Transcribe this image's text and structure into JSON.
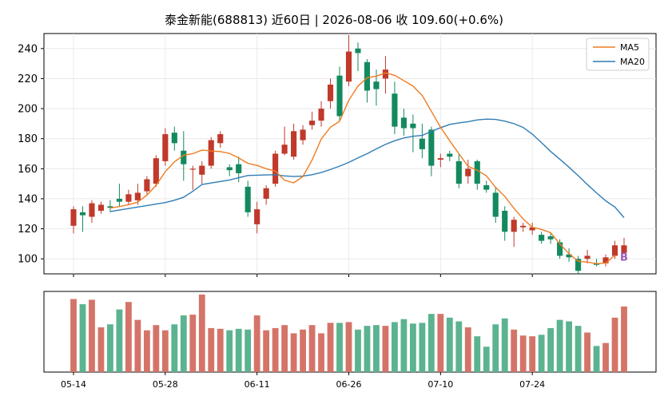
{
  "title": "泰金新能(688813) 近60日  |  2026-08-06 收 109.60(+0.6%)",
  "colors": {
    "up": "#c0392b",
    "down": "#138a5e",
    "up_vol": "#d47468",
    "down_vol": "#5bb38f",
    "ma5": "#ee7d22",
    "ma20": "#2f7db5",
    "marker": "#9b59b6"
  },
  "chart_data": [
    {
      "type": "candlestick",
      "ylim": [
        90,
        250
      ],
      "yticks": [
        "100",
        "120",
        "140",
        "160",
        "180",
        "200",
        "220",
        "240"
      ],
      "grid": true,
      "legend_position": "top-right",
      "xtick_positions": [
        0,
        10,
        20,
        30,
        40,
        50
      ],
      "xticks": [
        "05-14",
        "05-28",
        "06-11",
        "06-26",
        "07-10",
        "07-24"
      ],
      "ohlc": [
        [
          122,
          133,
          117,
          135
        ],
        [
          131,
          129,
          118,
          135
        ],
        [
          128,
          137,
          124,
          139
        ],
        [
          132,
          136,
          130,
          138
        ],
        [
          135,
          134,
          131,
          139
        ],
        [
          140,
          138,
          135,
          150
        ],
        [
          138,
          143,
          136,
          146
        ],
        [
          139,
          144,
          136,
          150
        ],
        [
          145,
          153,
          143,
          155
        ],
        [
          150,
          167,
          148,
          169
        ],
        [
          165,
          183,
          162,
          187
        ],
        [
          184,
          177,
          172,
          188
        ],
        [
          172,
          163,
          152,
          185
        ],
        [
          160,
          160,
          146,
          162
        ],
        [
          156,
          162,
          150,
          165
        ],
        [
          162,
          179,
          160,
          181
        ],
        [
          177,
          183,
          174,
          185
        ],
        [
          161,
          159,
          155,
          163
        ],
        [
          163,
          157,
          151,
          168
        ],
        [
          148,
          131,
          128,
          152
        ],
        [
          123,
          133,
          117,
          138
        ],
        [
          140,
          147,
          136,
          149
        ],
        [
          150,
          170,
          148,
          172
        ],
        [
          170,
          176,
          169,
          188
        ],
        [
          168,
          185,
          166,
          190
        ],
        [
          179,
          186,
          176,
          189
        ],
        [
          189,
          192,
          186,
          198
        ],
        [
          192,
          200,
          188,
          205
        ],
        [
          205,
          216,
          200,
          220
        ],
        [
          222,
          195,
          192,
          228
        ],
        [
          218,
          238,
          215,
          249
        ],
        [
          240,
          237,
          225,
          244
        ],
        [
          231,
          212,
          204,
          233
        ],
        [
          218,
          213,
          202,
          226
        ],
        [
          220,
          226,
          210,
          235
        ],
        [
          210,
          188,
          183,
          218
        ],
        [
          194,
          187,
          182,
          200
        ],
        [
          190,
          187,
          171,
          196
        ],
        [
          180,
          173,
          167,
          190
        ],
        [
          186,
          162,
          155,
          188
        ],
        [
          166,
          167,
          161,
          170
        ],
        [
          170,
          168,
          165,
          172
        ],
        [
          165,
          150,
          147,
          170
        ],
        [
          155,
          160,
          150,
          166
        ],
        [
          165,
          150,
          146,
          166
        ],
        [
          149,
          146,
          144,
          152
        ],
        [
          144,
          128,
          124,
          148
        ],
        [
          132,
          118,
          112,
          135
        ],
        [
          118,
          126,
          108,
          128
        ],
        [
          121,
          122,
          118,
          124
        ],
        [
          119,
          121,
          116,
          124
        ],
        [
          116,
          112,
          110,
          118
        ],
        [
          115,
          113,
          110,
          117
        ],
        [
          111,
          102,
          100,
          113
        ],
        [
          103,
          101,
          98,
          107
        ],
        [
          100,
          92,
          90,
          102
        ],
        [
          100,
          102,
          97,
          106
        ],
        [
          97,
          96,
          95,
          100
        ],
        [
          97,
          101,
          95,
          103
        ],
        [
          102,
          109,
          100,
          112
        ],
        [
          104,
          109,
          104,
          114
        ]
      ],
      "ma5": [
        null,
        null,
        null,
        null,
        133.8,
        134.8,
        136.0,
        137.8,
        142.4,
        149.0,
        158.0,
        164.6,
        169.0,
        170.0,
        172.4,
        171.8,
        171.4,
        170.2,
        167.2,
        163.6,
        162.2,
        160.0,
        158.4,
        152.4,
        150.6,
        154.8,
        165.8,
        179.8,
        187.6,
        191.6,
        205.6,
        215.0,
        220.6,
        221.6,
        223.8,
        222.2,
        218.6,
        215.0,
        208.8,
        198.2,
        187.6,
        178.6,
        170.0,
        161.6,
        159.0,
        155.2,
        147.6,
        141.6,
        133.6,
        126.6,
        121.0,
        119.6,
        117.4,
        110.0,
        103.4,
        98.4,
        97.8,
        96.8,
        97.2,
        102.4,
        null
      ],
      "ma20": [
        null,
        null,
        null,
        null,
        131.5,
        132.5,
        133.5,
        134.5,
        135.5,
        136.5,
        137.5,
        139.0,
        141.0,
        145.0,
        149.5,
        150.5,
        151.5,
        152.5,
        154.0,
        155.5,
        155.7,
        155.9,
        156.0,
        155.2,
        154.8,
        155.1,
        156.0,
        157.5,
        159.5,
        161.7,
        164.2,
        167.2,
        170.0,
        173.2,
        176.2,
        178.6,
        180.5,
        181.6,
        182.2,
        184.8,
        187.3,
        189.5,
        190.5,
        191.3,
        192.5,
        193.0,
        192.8,
        191.7,
        190.0,
        187.5,
        183.0,
        177.4,
        171.5,
        166.3,
        161.0,
        155.4,
        149.5,
        143.9,
        138.6,
        134.5,
        127.4
      ],
      "legend": [
        "MA5",
        "MA20"
      ],
      "markers": [
        {
          "index": 60,
          "value": 101.5,
          "label": "B"
        }
      ]
    },
    {
      "type": "bar",
      "series_role": "volume",
      "grid": false,
      "values": [
        98,
        91,
        97,
        60,
        64,
        84,
        94,
        70,
        56,
        63,
        56,
        64,
        76,
        77,
        104,
        59,
        58,
        56,
        58,
        57,
        76,
        56,
        59,
        63,
        52,
        57,
        63,
        52,
        66,
        66,
        67,
        57,
        62,
        63,
        62,
        67,
        71,
        65,
        66,
        78,
        78,
        73,
        68,
        60,
        48,
        34,
        64,
        72,
        57,
        49,
        48,
        50,
        59,
        70,
        68,
        62,
        53,
        35,
        39,
        73,
        88
      ]
    }
  ]
}
